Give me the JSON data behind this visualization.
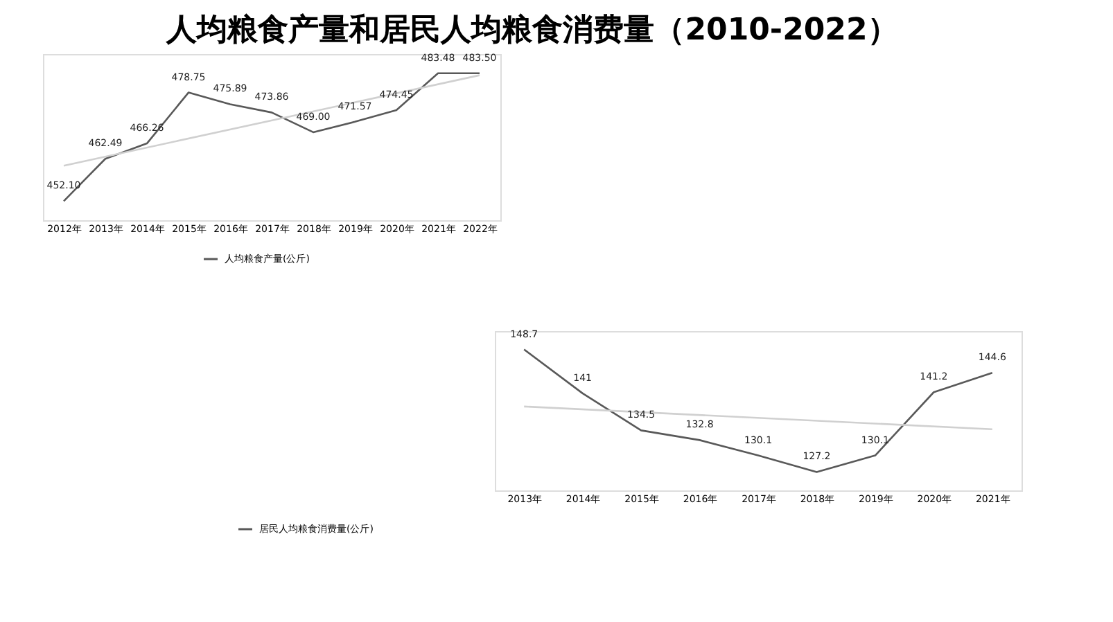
{
  "chart_data": [
    {
      "type": "line",
      "title": "人均粮食产量和居民人均粮食消费量（2010-2022）",
      "categories": [
        "2012年",
        "2013年",
        "2014年",
        "2015年",
        "2016年",
        "2017年",
        "2018年",
        "2019年",
        "2020年",
        "2021年",
        "2022年"
      ],
      "series": [
        {
          "name": "人均粮食产量(公斤)",
          "color": "#595959",
          "values": [
            452.1,
            462.49,
            466.26,
            478.75,
            475.89,
            473.86,
            469.0,
            471.57,
            474.45,
            483.48,
            483.5
          ],
          "value_labels": [
            "452.10",
            "462.49",
            "466.26",
            "478.75",
            "475.89",
            "473.86",
            "469.00",
            "471.57",
            "474.45",
            "483.48",
            "483.50"
          ]
        },
        {
          "type": "line",
          "color": "#d0d0d0",
          "x": [
            "2012年",
            "2022年"
          ],
          "values": [
            460.8,
            483.0
          ]
        }
      ],
      "legend": "bottom",
      "tick_labels": "x",
      "grid": false,
      "marker": "none",
      "line_style": "solid"
    },
    {
      "type": "line",
      "categories": [
        "2013年",
        "2014年",
        "2015年",
        "2016年",
        "2017年",
        "2018年",
        "2019年",
        "2020年",
        "2021年"
      ],
      "series": [
        {
          "name": "居民人均粮食消费量(公斤)",
          "color": "#595959",
          "values": [
            148.7,
            141,
            134.5,
            132.8,
            130.1,
            127.2,
            130.1,
            141.2,
            144.6
          ],
          "value_labels": [
            "148.7",
            "141",
            "134.5",
            "132.8",
            "130.1",
            "127.2",
            "130.1",
            "141.2",
            "144.6"
          ]
        },
        {
          "type": "line",
          "color": "#d0d0d0",
          "x": [
            "2013年",
            "2021年"
          ],
          "values": [
            138.7,
            134.7
          ]
        }
      ],
      "legend": "bottom",
      "tick_labels": "x",
      "grid": false,
      "marker": "none",
      "line_style": "solid"
    }
  ]
}
